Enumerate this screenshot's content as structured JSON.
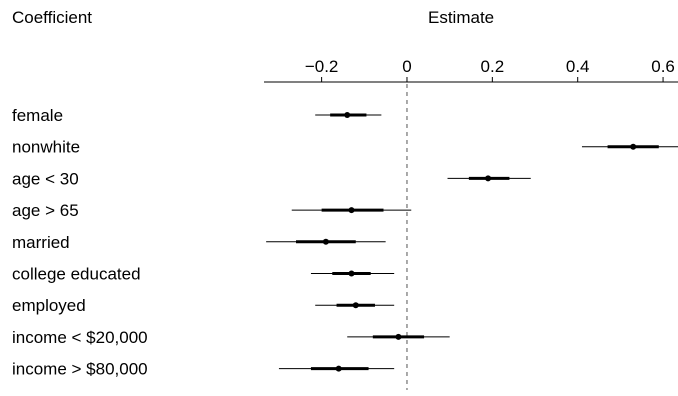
{
  "headers": {
    "coefficient": "Coefficient",
    "estimate": "Estimate"
  },
  "chart_data": {
    "type": "scatter",
    "title": "",
    "xlabel": "Estimate",
    "ylabel": "Coefficient",
    "xlim": [
      -0.335,
      0.635
    ],
    "ticks": [
      -0.2,
      0,
      0.2,
      0.4,
      0.6
    ],
    "tick_labels": [
      "−0.2",
      "0",
      "0.2",
      "0.4",
      "0.6"
    ],
    "reference_line": 0,
    "grid": false,
    "legend": "none",
    "colors": {
      "marks": "#000000",
      "reference_line": "#555555"
    },
    "rows": [
      {
        "label": "female",
        "estimate": -0.14,
        "ci_inner": [
          -0.18,
          -0.095
        ],
        "ci_outer": [
          -0.215,
          -0.06
        ]
      },
      {
        "label": "nonwhite",
        "estimate": 0.53,
        "ci_inner": [
          0.47,
          0.59
        ],
        "ci_outer": [
          0.41,
          0.64
        ]
      },
      {
        "label": "age < 30",
        "estimate": 0.19,
        "ci_inner": [
          0.145,
          0.24
        ],
        "ci_outer": [
          0.095,
          0.29
        ]
      },
      {
        "label": "age > 65",
        "estimate": -0.13,
        "ci_inner": [
          -0.2,
          -0.055
        ],
        "ci_outer": [
          -0.27,
          0.01
        ]
      },
      {
        "label": "married",
        "estimate": -0.19,
        "ci_inner": [
          -0.26,
          -0.12
        ],
        "ci_outer": [
          -0.33,
          -0.05
        ]
      },
      {
        "label": "college educated",
        "estimate": -0.13,
        "ci_inner": [
          -0.175,
          -0.085
        ],
        "ci_outer": [
          -0.225,
          -0.03
        ]
      },
      {
        "label": "employed",
        "estimate": -0.12,
        "ci_inner": [
          -0.165,
          -0.075
        ],
        "ci_outer": [
          -0.215,
          -0.03
        ]
      },
      {
        "label": "income < $20,000",
        "estimate": -0.02,
        "ci_inner": [
          -0.08,
          0.04
        ],
        "ci_outer": [
          -0.14,
          0.1
        ]
      },
      {
        "label": "income > $80,000",
        "estimate": -0.16,
        "ci_inner": [
          -0.225,
          -0.09
        ],
        "ci_outer": [
          -0.3,
          -0.03
        ]
      }
    ]
  }
}
